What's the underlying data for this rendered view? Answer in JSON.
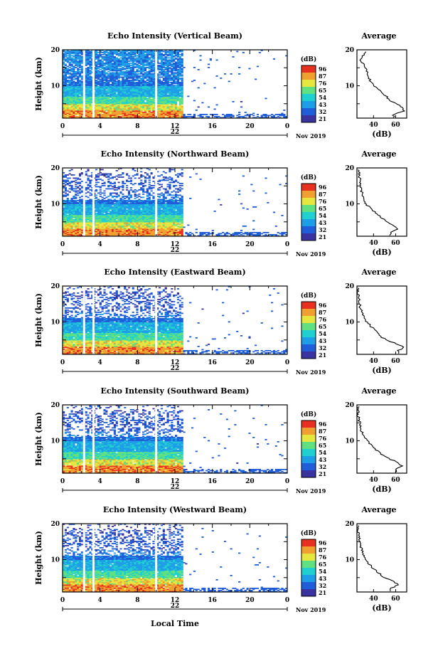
{
  "x_axis_label": "Local Time",
  "date_label": "Nov 2019",
  "panel_ylabel": "Height (km)",
  "colorbar_unit": "(dB)",
  "colorbar_ticks": [
    "96",
    "87",
    "76",
    "65",
    "54",
    "43",
    "32",
    "21"
  ],
  "average_title": "Average",
  "average_xlabel": "(dB)",
  "colors": [
    "#3a32a0",
    "#1f5ed8",
    "#1f9ee8",
    "#20d0d0",
    "#60e080",
    "#e6e640",
    "#f0a030",
    "#e83020"
  ],
  "panels": [
    {
      "title": "Echo Intensity (Vertical Beam)",
      "day_label": "22",
      "cb_ticks": [
        "96",
        "87",
        "76",
        "65",
        "54",
        "43",
        "32",
        "21"
      ],
      "avg_ticks": [
        "40",
        "60"
      ]
    },
    {
      "title": "Echo Intensity (Northward Beam)",
      "day_label": "22",
      "cb_ticks": [
        "96",
        "87",
        "76",
        "65",
        "54",
        "43",
        "32",
        "21"
      ],
      "avg_ticks": [
        "40",
        "60"
      ]
    },
    {
      "title": "Echo Intensity (Eastward Beam)",
      "day_label": "22",
      "cb_ticks": [
        "96",
        "87",
        "76",
        "65",
        "54",
        "43",
        "32",
        "21"
      ],
      "avg_ticks": [
        "40",
        "60"
      ]
    },
    {
      "title": "Echo Intensity (Southward Beam)",
      "day_label": "22",
      "cb_ticks": [
        "96",
        "87",
        "76",
        "65",
        "54",
        "43",
        "32",
        "21"
      ],
      "avg_ticks": [
        "40",
        "60"
      ]
    },
    {
      "title": "Echo Intensity (Westward Beam)",
      "day_label": "22",
      "cb_ticks": [
        "96",
        "87",
        "76",
        "65",
        "54",
        "43",
        "32",
        "21"
      ],
      "avg_ticks": [
        "40",
        "60"
      ]
    }
  ],
  "chart_data": {
    "type": "heatmap",
    "x_ticks": [
      "0",
      "4",
      "8",
      "12",
      "16",
      "20",
      "0"
    ],
    "y_ticks": [
      "20",
      "10"
    ],
    "xlim": [
      0,
      24
    ],
    "ylim": [
      1,
      20
    ],
    "xlabel": "Local Time",
    "ylabel": "Height (km)",
    "colorbar_label": "(dB)",
    "data_gaps_hours": [
      2.3,
      3.3,
      10.0
    ],
    "data_end_hour": 12.8,
    "average_profiles": [
      {
        "beam": "Vertical",
        "height_km": [
          2,
          3,
          4,
          5,
          6,
          8,
          10,
          12,
          14,
          16,
          17,
          18,
          19
        ],
        "db": [
          58,
          68,
          66,
          60,
          55,
          48,
          40,
          36,
          34,
          32,
          28,
          30,
          32
        ]
      },
      {
        "beam": "Northward",
        "height_km": [
          2,
          3,
          4,
          5,
          6,
          8,
          10,
          12,
          14,
          16,
          18,
          19
        ],
        "db": [
          55,
          62,
          58,
          52,
          48,
          40,
          33,
          30,
          29,
          28,
          27,
          27
        ]
      },
      {
        "beam": "Eastward",
        "height_km": [
          2,
          3,
          4,
          5,
          6,
          8,
          10,
          12,
          14,
          16,
          18,
          19
        ],
        "db": [
          62,
          68,
          60,
          52,
          46,
          40,
          34,
          30,
          28,
          27,
          26,
          26
        ]
      },
      {
        "beam": "Southward",
        "height_km": [
          2,
          3,
          4,
          5,
          6,
          8,
          10,
          12,
          14,
          16,
          17,
          18,
          19
        ],
        "db": [
          60,
          66,
          62,
          54,
          48,
          40,
          34,
          30,
          28,
          27,
          26,
          26,
          26
        ]
      },
      {
        "beam": "Westward",
        "height_km": [
          2,
          3,
          4,
          5,
          6,
          8,
          10,
          12,
          14,
          16,
          18,
          19
        ],
        "db": [
          55,
          63,
          58,
          50,
          46,
          38,
          33,
          30,
          28,
          27,
          26,
          26
        ]
      }
    ]
  }
}
